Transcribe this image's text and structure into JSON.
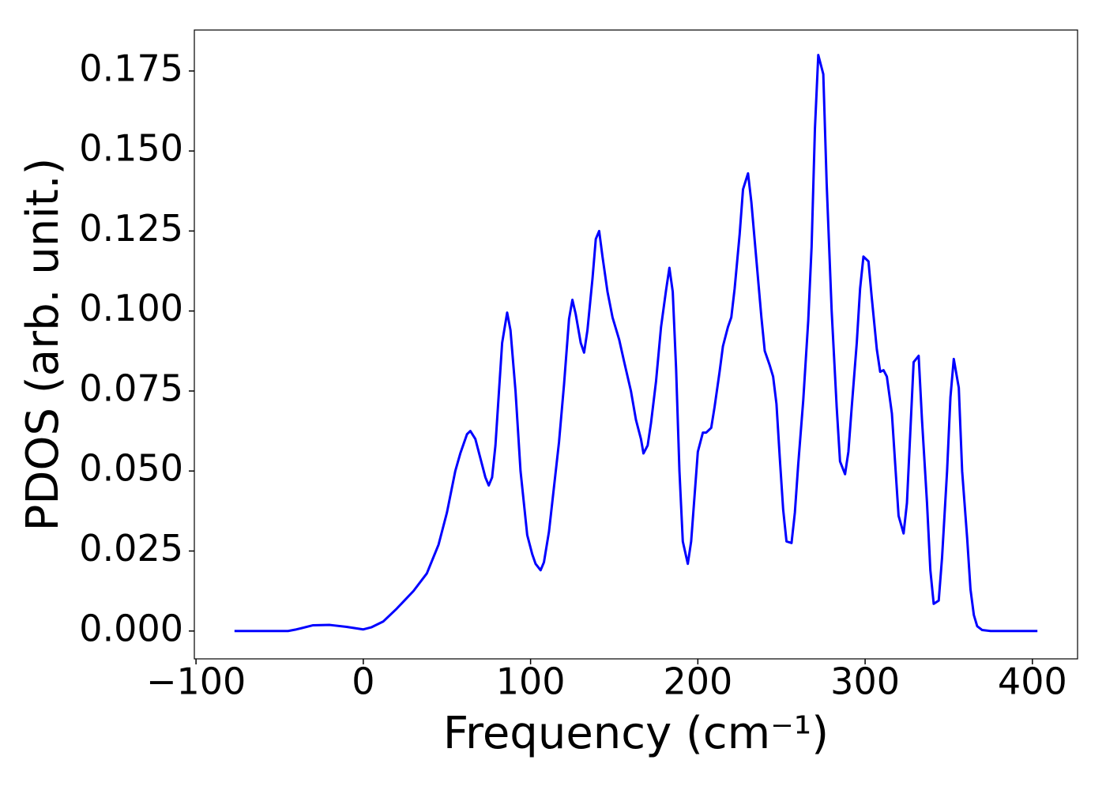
{
  "chart_data": {
    "type": "line",
    "x_label": "Frequency (cm⁻¹)",
    "y_label": "PDOS (arb. unit.)",
    "xlim": [
      -101,
      427
    ],
    "ylim": [
      -0.0087,
      0.1878
    ],
    "xticks": [
      {
        "value": -100,
        "label": "−100"
      },
      0,
      100,
      200,
      300,
      400
    ],
    "yticks": [
      {
        "value": 0,
        "label": "0.000"
      },
      {
        "value": 0.025,
        "label": "0.025"
      },
      {
        "value": 0.05,
        "label": "0.050"
      },
      {
        "value": 0.075,
        "label": "0.075"
      },
      {
        "value": 0.1,
        "label": "0.100"
      },
      {
        "value": 0.125,
        "label": "0.125"
      },
      {
        "value": 0.15,
        "label": "0.150"
      },
      {
        "value": 0.175,
        "label": "0.175"
      }
    ],
    "grid": false,
    "series": [
      {
        "name": "PDOS",
        "color": "#0000ff",
        "x": [
          -77,
          -45,
          -40,
          -30,
          -20,
          -10,
          0,
          5,
          12,
          20,
          30,
          38,
          45,
          50,
          55,
          58,
          62,
          64,
          67,
          70,
          73,
          75,
          77,
          79,
          83,
          86,
          88,
          91,
          94,
          98,
          101,
          103,
          106,
          108,
          111,
          114,
          117,
          120,
          123,
          125,
          127,
          130,
          132,
          134,
          137,
          139,
          141,
          143,
          146,
          149,
          153,
          156,
          160,
          163,
          166,
          167.5,
          170,
          172,
          175,
          178,
          181,
          183,
          185,
          187,
          189,
          191,
          194,
          196,
          198,
          200,
          203,
          205,
          208,
          210,
          213,
          215,
          218,
          220,
          222,
          225,
          227,
          230,
          232,
          235,
          238,
          240,
          243,
          245,
          247,
          249,
          251,
          253,
          256,
          258,
          260,
          263,
          266,
          268,
          270,
          272,
          275,
          277,
          280,
          283,
          285,
          288,
          290,
          292,
          295,
          297,
          299,
          302,
          304,
          307,
          309,
          311,
          313,
          316,
          318,
          320,
          323,
          325,
          327,
          329,
          332,
          334,
          337,
          339,
          341,
          344,
          346,
          349,
          351,
          353,
          356,
          358,
          361,
          363,
          365,
          367,
          370,
          375,
          403
        ],
        "values": [
          0,
          0,
          0.0005,
          0.0018,
          0.0019,
          0.0013,
          0.0005,
          0.0012,
          0.003,
          0.007,
          0.0125,
          0.018,
          0.027,
          0.037,
          0.05,
          0.0555,
          0.0615,
          0.0625,
          0.06,
          0.054,
          0.048,
          0.0455,
          0.048,
          0.058,
          0.09,
          0.0995,
          0.094,
          0.075,
          0.05,
          0.03,
          0.024,
          0.021,
          0.019,
          0.0215,
          0.031,
          0.045,
          0.059,
          0.077,
          0.0975,
          0.1035,
          0.099,
          0.09,
          0.087,
          0.094,
          0.11,
          0.1225,
          0.125,
          0.117,
          0.106,
          0.098,
          0.091,
          0.084,
          0.075,
          0.066,
          0.06,
          0.0555,
          0.058,
          0.065,
          0.078,
          0.095,
          0.1065,
          0.1135,
          0.106,
          0.082,
          0.05,
          0.028,
          0.021,
          0.028,
          0.042,
          0.056,
          0.062,
          0.062,
          0.0635,
          0.07,
          0.081,
          0.089,
          0.095,
          0.098,
          0.107,
          0.124,
          0.138,
          0.143,
          0.134,
          0.116,
          0.098,
          0.0875,
          0.083,
          0.0795,
          0.071,
          0.054,
          0.038,
          0.028,
          0.0275,
          0.037,
          0.052,
          0.072,
          0.097,
          0.12,
          0.157,
          0.18,
          0.174,
          0.14,
          0.1,
          0.07,
          0.053,
          0.049,
          0.056,
          0.07,
          0.09,
          0.107,
          0.117,
          0.1155,
          0.104,
          0.088,
          0.081,
          0.0815,
          0.0795,
          0.068,
          0.052,
          0.036,
          0.0305,
          0.04,
          0.062,
          0.084,
          0.086,
          0.066,
          0.04,
          0.019,
          0.0085,
          0.0095,
          0.023,
          0.05,
          0.073,
          0.085,
          0.076,
          0.05,
          0.029,
          0.013,
          0.005,
          0.0015,
          0.0003,
          0,
          0
        ]
      }
    ]
  }
}
